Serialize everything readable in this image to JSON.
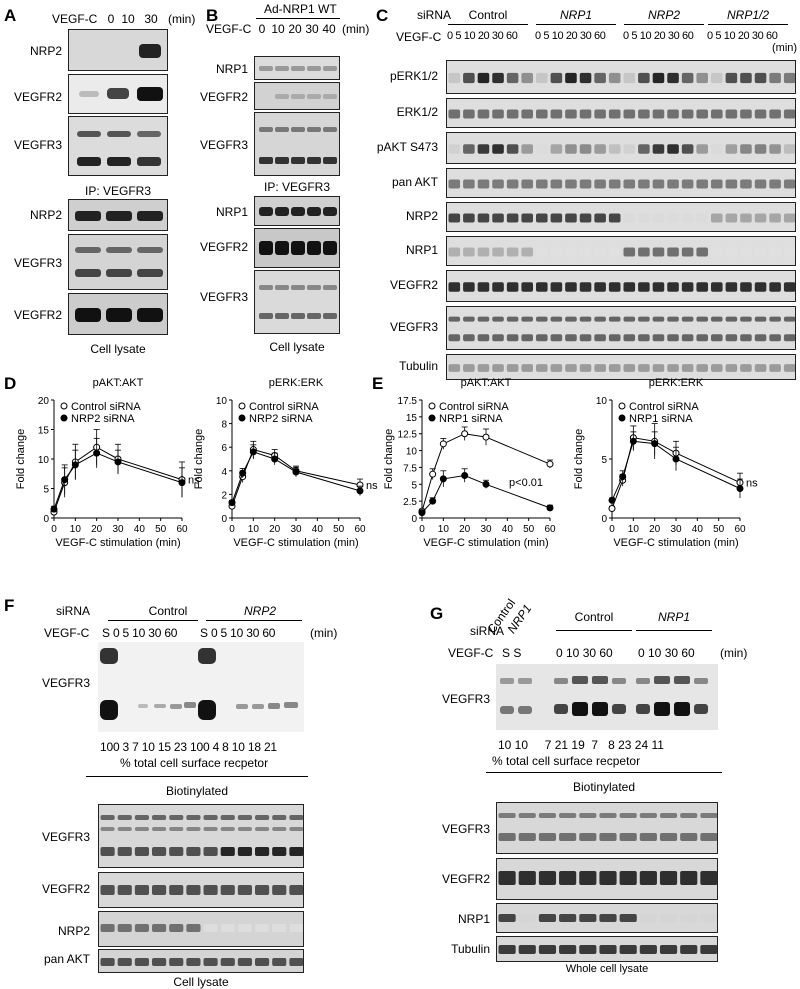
{
  "panels": {
    "A": {
      "letter": "A",
      "treatment_label": "VEGF-C",
      "times": [
        "0",
        "10",
        "30"
      ],
      "unit": "(min)",
      "ip_label": "IP: VEGFR3",
      "lysate_label": "Cell lysate",
      "ip_blots": [
        "NRP2",
        "VEGFR2",
        "VEGFR3"
      ],
      "lysate_blots": [
        "NRP2",
        "VEGFR3",
        "VEGFR2"
      ]
    },
    "B": {
      "letter": "B",
      "construct": "Ad-NRP1 WT",
      "treatment_label": "VEGF-C",
      "times": [
        "0",
        "10",
        "20",
        "30",
        "40"
      ],
      "unit": "(min)",
      "ip_label": "IP: VEGFR3",
      "lysate_label": "Cell lysate",
      "ip_blots": [
        "NRP1",
        "VEGFR2",
        "VEGFR3"
      ],
      "lysate_blots": [
        "NRP1",
        "VEGFR2",
        "VEGFR3"
      ]
    },
    "C": {
      "letter": "C",
      "sirna_label": "siRNA",
      "treatment_label": "VEGF-C",
      "groups": [
        "Control",
        "NRP1",
        "NRP2",
        "NRP1/2"
      ],
      "times": "0  5 10 20 30 60",
      "times_last": "0  5 10 20 30 60",
      "unit": "(min)",
      "blots": [
        "pERK1/2",
        "ERK1/2",
        "pAKT S473",
        "pan AKT",
        "NRP2",
        "NRP1",
        "VEGFR2",
        "VEGFR3",
        "Tubulin"
      ]
    },
    "D": {
      "letter": "D",
      "charts": [
        {
          "title": "pAKT:AKT",
          "legend": [
            "Control siRNA",
            "NRP2 siRNA"
          ],
          "annotation": "ns"
        },
        {
          "title": "pERK:ERK",
          "legend": [
            "Control siRNA",
            "NRP2 siRNA"
          ],
          "annotation": "ns"
        }
      ]
    },
    "E": {
      "letter": "E",
      "charts": [
        {
          "title": "pAKT:AKT",
          "legend": [
            "Control siRNA",
            "NRP1 siRNA"
          ],
          "annotation": "p<0.01"
        },
        {
          "title": "pERK:ERK",
          "legend": [
            "Control siRNA",
            "NRP1 siRNA"
          ],
          "annotation": "ns"
        }
      ]
    },
    "F": {
      "letter": "F",
      "sirna_label": "siRNA",
      "treatment_label": "VEGF-C",
      "groups": [
        "Control",
        "NRP2"
      ],
      "lanes": "S  0   5  10  30  60",
      "unit": "(min)",
      "surface_blot": "VEGFR3",
      "percent_values": "100  3   7  10  15  23 100  4   8  10  18  21",
      "percent_label": "% total cell surface recpetor",
      "biotin_label": "Biotinylated",
      "lysate_blots": [
        "VEGFR3",
        "VEGFR2",
        "NRP2",
        "pan AKT"
      ],
      "lysate_label": "Cell lysate"
    },
    "G": {
      "letter": "G",
      "sirna_label": "siRNA",
      "treatment_label": "VEGF-C",
      "angled_groups": [
        "Control",
        "NRP1"
      ],
      "groups": [
        "Control",
        "NRP1"
      ],
      "s_lanes": "S  S",
      "lanes": "0 10 30 60",
      "unit": "(min)",
      "surface_blot": "VEGFR3",
      "percent_values": "10 10     7 21 19  7   8 23 24 11",
      "percent_label": "% total cell surface recpetor",
      "biotin_label": "Biotinylated",
      "lysate_blots": [
        "VEGFR3",
        "VEGFR2",
        "NRP1",
        "Tubulin"
      ],
      "lysate_label": "Whole cell lysate"
    }
  },
  "chart_data": [
    {
      "panel": "D",
      "type": "line",
      "title": "pAKT:AKT",
      "xlabel": "VEGF-C stimulation (min)",
      "ylabel": "Fold change",
      "xlim": [
        0,
        60
      ],
      "ylim": [
        0,
        20
      ],
      "xticks": [
        0,
        10,
        20,
        30,
        40,
        50,
        60
      ],
      "yticks": [
        0,
        5,
        10,
        15,
        20
      ],
      "legend_position": "top-left",
      "annotation": "ns",
      "series": [
        {
          "name": "Control siRNA",
          "marker": "open",
          "x": [
            0,
            5,
            10,
            20,
            30,
            60
          ],
          "y": [
            1.0,
            6.0,
            9.5,
            12.0,
            10.0,
            6.5
          ],
          "err": [
            0.5,
            2.5,
            3.0,
            3.0,
            2.5,
            3.0
          ]
        },
        {
          "name": "NRP2 siRNA",
          "marker": "filled",
          "x": [
            0,
            5,
            10,
            20,
            30,
            60
          ],
          "y": [
            1.5,
            6.5,
            9.0,
            11.0,
            9.5,
            6.0
          ],
          "err": [
            0.5,
            2.5,
            2.5,
            2.5,
            2.0,
            2.5
          ]
        }
      ]
    },
    {
      "panel": "D",
      "type": "line",
      "title": "pERK:ERK",
      "xlabel": "VEGF-C stimulation (min)",
      "ylabel": "Fold change",
      "xlim": [
        0,
        60
      ],
      "ylim": [
        0,
        10
      ],
      "xticks": [
        0,
        10,
        20,
        30,
        40,
        50,
        60
      ],
      "yticks": [
        0,
        2,
        4,
        6,
        8,
        10
      ],
      "legend_position": "top-left",
      "annotation": "ns",
      "series": [
        {
          "name": "Control siRNA",
          "marker": "open",
          "x": [
            0,
            5,
            10,
            20,
            30,
            60
          ],
          "y": [
            1.0,
            3.5,
            5.8,
            5.3,
            4.0,
            2.8
          ],
          "err": [
            0.2,
            0.5,
            0.7,
            0.5,
            0.4,
            0.5
          ]
        },
        {
          "name": "NRP2 siRNA",
          "marker": "filled",
          "x": [
            0,
            5,
            10,
            20,
            30,
            60
          ],
          "y": [
            1.3,
            3.8,
            5.6,
            5.0,
            3.9,
            2.3
          ],
          "err": [
            0.2,
            0.4,
            0.6,
            0.5,
            0.4,
            0.4
          ]
        }
      ]
    },
    {
      "panel": "E",
      "type": "line",
      "title": "pAKT:AKT",
      "xlabel": "VEGF-C stimulation (min)",
      "ylabel": "Fold change",
      "xlim": [
        0,
        60
      ],
      "ylim": [
        0,
        17.5
      ],
      "xticks": [
        0,
        10,
        20,
        30,
        40,
        50,
        60
      ],
      "yticks": [
        0,
        2.5,
        5,
        7.5,
        10,
        12.5,
        15,
        17.5
      ],
      "legend_position": "top-left",
      "annotation": "p<0.01",
      "series": [
        {
          "name": "Control siRNA",
          "marker": "open",
          "x": [
            0,
            5,
            10,
            20,
            30,
            60
          ],
          "y": [
            1.0,
            6.5,
            11.0,
            12.5,
            12.0,
            8.0
          ],
          "err": [
            0.3,
            0.8,
            0.8,
            1.0,
            1.2,
            0.6
          ]
        },
        {
          "name": "NRP1 siRNA",
          "marker": "filled",
          "x": [
            0,
            5,
            10,
            20,
            30,
            60
          ],
          "y": [
            0.8,
            2.5,
            5.8,
            6.3,
            5.0,
            1.5
          ],
          "err": [
            0.2,
            0.5,
            1.2,
            1.0,
            0.6,
            0.4
          ]
        }
      ]
    },
    {
      "panel": "E",
      "type": "line",
      "title": "pERK:ERK",
      "xlabel": "VEGF-C stimulation (min)",
      "ylabel": "Fold change",
      "xlim": [
        0,
        60
      ],
      "ylim": [
        0,
        10
      ],
      "xticks": [
        0,
        10,
        20,
        30,
        40,
        50,
        60
      ],
      "yticks": [
        0,
        5,
        10
      ],
      "legend_position": "top-left",
      "annotation": "ns",
      "series": [
        {
          "name": "Control siRNA",
          "marker": "open",
          "x": [
            0,
            5,
            10,
            20,
            30,
            60
          ],
          "y": [
            0.8,
            3.2,
            6.8,
            6.5,
            5.5,
            3.0
          ],
          "err": [
            0.2,
            0.5,
            1.0,
            1.5,
            1.0,
            0.8
          ]
        },
        {
          "name": "NRP1 siRNA",
          "marker": "filled",
          "x": [
            0,
            5,
            10,
            20,
            30,
            60
          ],
          "y": [
            1.5,
            3.5,
            6.5,
            6.3,
            5.0,
            2.5
          ],
          "err": [
            0.2,
            0.5,
            0.8,
            1.0,
            1.0,
            0.8
          ]
        }
      ]
    }
  ]
}
